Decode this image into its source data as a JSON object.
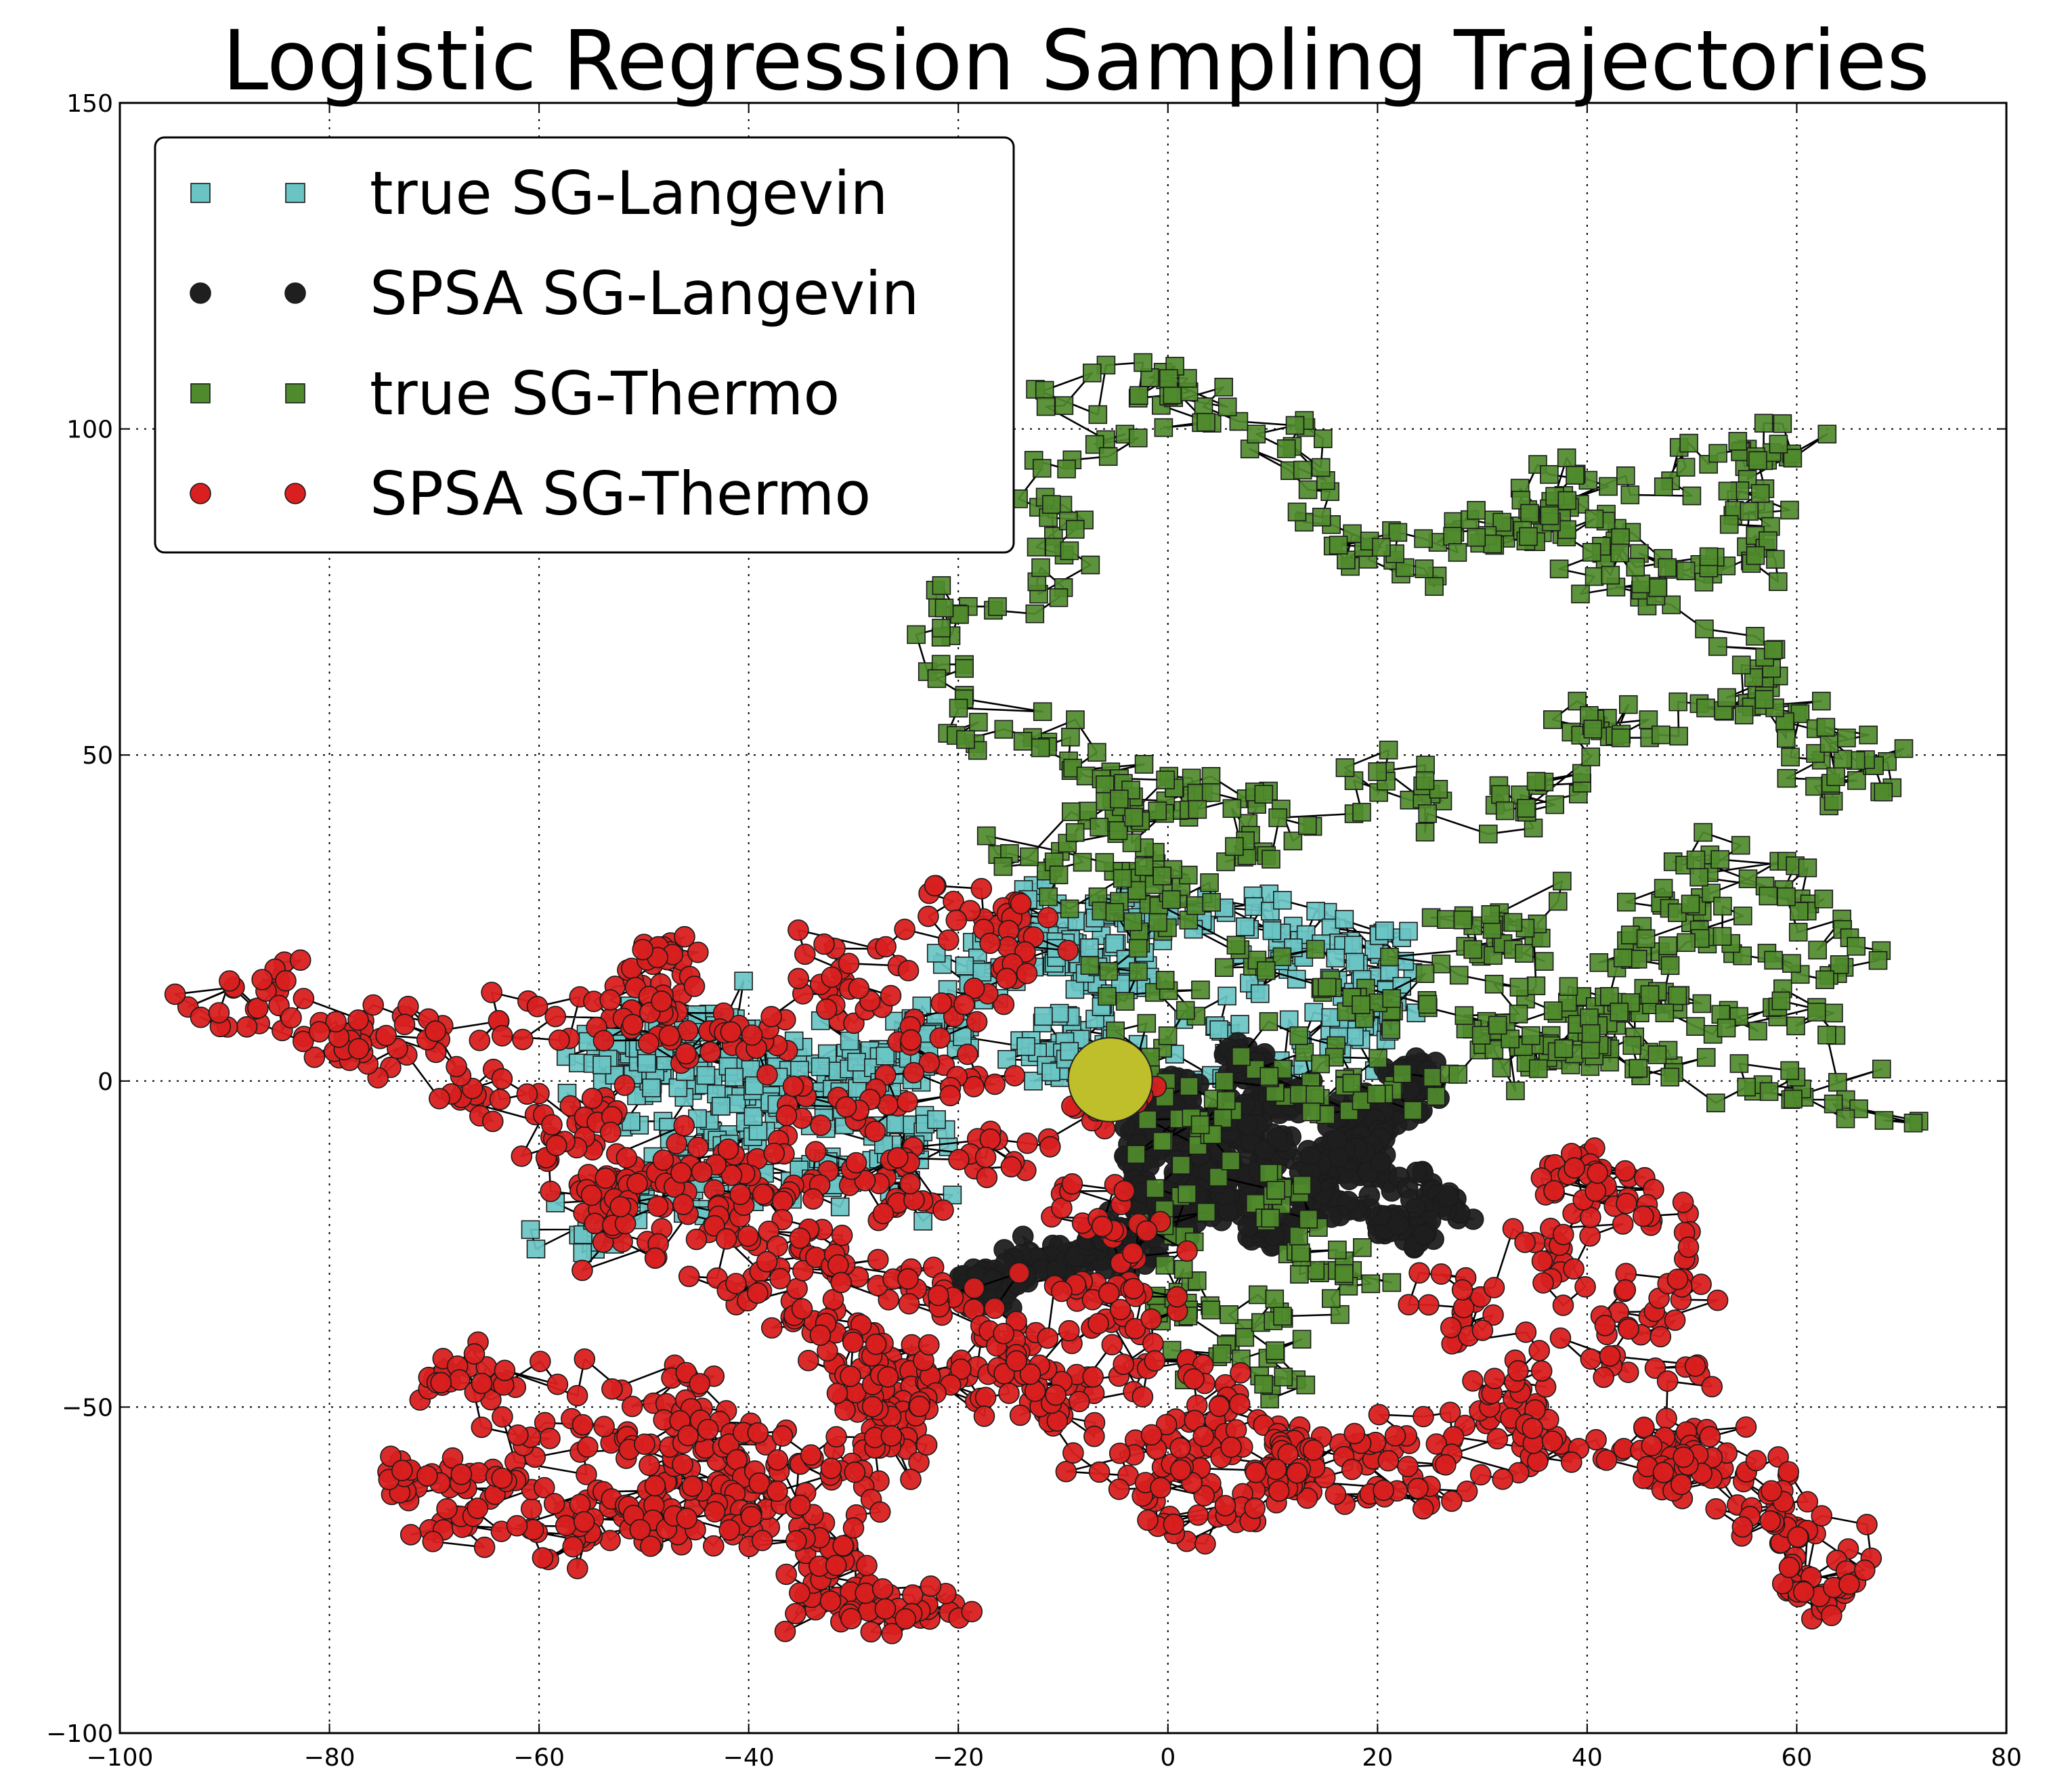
{
  "chart_data": {
    "type": "scatter",
    "title": "Logistic Regression Sampling Trajectories",
    "xlabel": "",
    "ylabel": "",
    "xlim": [
      -100,
      80
    ],
    "ylim": [
      -100,
      150
    ],
    "x_ticks": [
      -100,
      -80,
      -60,
      -40,
      -20,
      0,
      20,
      40,
      60,
      80
    ],
    "y_ticks": [
      -100,
      -50,
      0,
      50,
      100,
      150
    ],
    "x_tick_labels": [
      "−100",
      "−80",
      "−60",
      "−40",
      "−20",
      "0",
      "20",
      "40",
      "60",
      "80"
    ],
    "y_tick_labels": [
      "−100",
      "−50",
      "0",
      "50",
      "100",
      "150"
    ],
    "grid": true,
    "legend_position": "top-left",
    "start_point": {
      "name": "start",
      "x": -5.5,
      "y": 0.2,
      "color": "#bfbf2b"
    },
    "series": [
      {
        "name": "true SG-Langevin",
        "marker": "square",
        "color": "#6ac4c4",
        "anchors": [
          [
            -4,
            2
          ],
          [
            -10,
            12
          ],
          [
            -15,
            20
          ],
          [
            -8,
            22
          ],
          [
            2,
            24
          ],
          [
            12,
            20
          ],
          [
            15,
            26
          ],
          [
            20,
            18
          ],
          [
            22,
            12
          ],
          [
            18,
            8
          ],
          [
            10,
            6
          ],
          [
            5,
            10
          ],
          [
            -2,
            14
          ],
          [
            -8,
            16
          ],
          [
            -14,
            18
          ],
          [
            -20,
            12
          ],
          [
            -26,
            8
          ],
          [
            -30,
            4
          ],
          [
            -36,
            2
          ],
          [
            -44,
            6
          ],
          [
            -52,
            10
          ],
          [
            -56,
            4
          ],
          [
            -50,
            -2
          ],
          [
            -44,
            -6
          ],
          [
            -40,
            -10
          ],
          [
            -48,
            -14
          ],
          [
            -52,
            -20
          ],
          [
            -46,
            -18
          ],
          [
            -38,
            -16
          ],
          [
            -30,
            -14
          ],
          [
            -24,
            -10
          ],
          [
            -22,
            -4
          ],
          [
            -28,
            0
          ],
          [
            -34,
            -4
          ],
          [
            -40,
            -2
          ],
          [
            -46,
            2
          ],
          [
            -50,
            6
          ],
          [
            -54,
            8
          ],
          [
            -48,
            10
          ],
          [
            -42,
            4
          ],
          [
            -34,
            6
          ],
          [
            -26,
            4
          ],
          [
            -18,
            6
          ],
          [
            -12,
            8
          ],
          [
            -6,
            4
          ],
          [
            -3,
            1
          ]
        ],
        "count": 720
      },
      {
        "name": "SPSA SG-Langevin",
        "marker": "circle",
        "color": "#1f1f1f",
        "anchors": [
          [
            -3,
            -1
          ],
          [
            0,
            -6
          ],
          [
            4,
            -12
          ],
          [
            9,
            -16
          ],
          [
            14,
            -18
          ],
          [
            18,
            -12
          ],
          [
            21,
            -6
          ],
          [
            24,
            0
          ],
          [
            20,
            -4
          ],
          [
            16,
            -10
          ],
          [
            24,
            -14
          ],
          [
            26,
            -20
          ],
          [
            22,
            -24
          ],
          [
            18,
            -20
          ],
          [
            12,
            -24
          ],
          [
            8,
            -20
          ],
          [
            4,
            -16
          ],
          [
            0,
            -10
          ],
          [
            -2,
            -4
          ],
          [
            3,
            -2
          ],
          [
            7,
            4
          ],
          [
            10,
            0
          ],
          [
            8,
            -8
          ],
          [
            4,
            -6
          ],
          [
            0,
            -2
          ],
          [
            -4,
            -8
          ],
          [
            -2,
            -16
          ],
          [
            2,
            -22
          ],
          [
            -4,
            -26
          ],
          [
            -10,
            -28
          ],
          [
            -16,
            -30
          ],
          [
            -20,
            -33
          ],
          [
            -14,
            -32
          ],
          [
            -6,
            -26
          ],
          [
            0,
            -18
          ],
          [
            6,
            -10
          ],
          [
            12,
            -6
          ],
          [
            16,
            -2
          ],
          [
            20,
            -8
          ],
          [
            12,
            -14
          ],
          [
            6,
            -4
          ]
        ],
        "count": 900
      },
      {
        "name": "true SG-Thermo",
        "marker": "square",
        "color": "#4f8a2d",
        "anchors": [
          [
            -4,
            0
          ],
          [
            2,
            -8
          ],
          [
            6,
            -16
          ],
          [
            2,
            -26
          ],
          [
            -2,
            -36
          ],
          [
            4,
            -44
          ],
          [
            10,
            -48
          ],
          [
            14,
            -40
          ],
          [
            20,
            -34
          ],
          [
            16,
            -26
          ],
          [
            10,
            -18
          ],
          [
            4,
            -12
          ],
          [
            8,
            -4
          ],
          [
            14,
            2
          ],
          [
            18,
            -4
          ],
          [
            22,
            0
          ],
          [
            28,
            4
          ],
          [
            34,
            8
          ],
          [
            40,
            6
          ],
          [
            46,
            2
          ],
          [
            52,
            6
          ],
          [
            58,
            10
          ],
          [
            62,
            4
          ],
          [
            64,
            -4
          ],
          [
            56,
            0
          ],
          [
            48,
            8
          ],
          [
            42,
            14
          ],
          [
            46,
            22
          ],
          [
            52,
            28
          ],
          [
            56,
            34
          ],
          [
            60,
            26
          ],
          [
            66,
            22
          ],
          [
            58,
            18
          ],
          [
            52,
            22
          ],
          [
            46,
            18
          ],
          [
            40,
            12
          ],
          [
            36,
            6
          ],
          [
            30,
            10
          ],
          [
            34,
            16
          ],
          [
            38,
            22
          ],
          [
            32,
            20
          ],
          [
            28,
            12
          ],
          [
            22,
            14
          ],
          [
            16,
            12
          ],
          [
            10,
            18
          ],
          [
            4,
            24
          ],
          [
            -2,
            30
          ],
          [
            -8,
            32
          ],
          [
            -4,
            40
          ],
          [
            0,
            46
          ],
          [
            6,
            50
          ],
          [
            12,
            44
          ],
          [
            18,
            40
          ],
          [
            24,
            44
          ],
          [
            30,
            40
          ],
          [
            36,
            42
          ],
          [
            42,
            48
          ],
          [
            48,
            54
          ],
          [
            56,
            56
          ],
          [
            62,
            52
          ],
          [
            68,
            44
          ],
          [
            64,
            52
          ],
          [
            58,
            60
          ],
          [
            52,
            66
          ],
          [
            46,
            70
          ],
          [
            40,
            76
          ],
          [
            36,
            84
          ],
          [
            40,
            90
          ],
          [
            46,
            94
          ],
          [
            52,
            96
          ],
          [
            58,
            100
          ],
          [
            60,
            88
          ],
          [
            56,
            80
          ],
          [
            50,
            76
          ],
          [
            44,
            82
          ],
          [
            38,
            88
          ],
          [
            32,
            84
          ],
          [
            26,
            80
          ],
          [
            20,
            76
          ],
          [
            14,
            82
          ],
          [
            10,
            90
          ],
          [
            6,
            98
          ],
          [
            2,
            104
          ],
          [
            -4,
            108
          ],
          [
            -10,
            104
          ],
          [
            -14,
            96
          ],
          [
            -18,
            86
          ],
          [
            -20,
            76
          ],
          [
            -22,
            66
          ],
          [
            -18,
            58
          ],
          [
            -12,
            54
          ],
          [
            -8,
            48
          ],
          [
            -4,
            42
          ],
          [
            -8,
            36
          ],
          [
            -6,
            28
          ],
          [
            -2,
            20
          ],
          [
            0,
            12
          ],
          [
            -2,
            6
          ]
        ],
        "count": 1050
      },
      {
        "name": "SPSA SG-Thermo",
        "marker": "circle",
        "color": "#d91f1f",
        "anchors": [
          [
            -5,
            -2
          ],
          [
            -12,
            -6
          ],
          [
            -18,
            -10
          ],
          [
            -24,
            -14
          ],
          [
            -32,
            -18
          ],
          [
            -40,
            -20
          ],
          [
            -48,
            -22
          ],
          [
            -54,
            -18
          ],
          [
            -56,
            -10
          ],
          [
            -60,
            -4
          ],
          [
            -68,
            -4
          ],
          [
            -76,
            -2
          ],
          [
            -84,
            6
          ],
          [
            -90,
            14
          ],
          [
            -84,
            12
          ],
          [
            -76,
            10
          ],
          [
            -66,
            12
          ],
          [
            -58,
            18
          ],
          [
            -50,
            22
          ],
          [
            -46,
            14
          ],
          [
            -50,
            6
          ],
          [
            -44,
            0
          ],
          [
            -38,
            4
          ],
          [
            -32,
            10
          ],
          [
            -26,
            16
          ],
          [
            -22,
            22
          ],
          [
            -16,
            28
          ],
          [
            -12,
            22
          ],
          [
            -16,
            14
          ],
          [
            -20,
            6
          ],
          [
            -26,
            0
          ],
          [
            -32,
            -4
          ],
          [
            -38,
            -8
          ],
          [
            -44,
            -12
          ],
          [
            -50,
            -8
          ],
          [
            -54,
            -14
          ],
          [
            -48,
            -20
          ],
          [
            -40,
            -26
          ],
          [
            -34,
            -32
          ],
          [
            -28,
            -38
          ],
          [
            -22,
            -42
          ],
          [
            -16,
            -46
          ],
          [
            -10,
            -44
          ],
          [
            -4,
            -40
          ],
          [
            0,
            -46
          ],
          [
            4,
            -52
          ],
          [
            8,
            -56
          ],
          [
            12,
            -60
          ],
          [
            16,
            -66
          ],
          [
            22,
            -60
          ],
          [
            28,
            -54
          ],
          [
            32,
            -46
          ],
          [
            30,
            -38
          ],
          [
            34,
            -32
          ],
          [
            40,
            -28
          ],
          [
            44,
            -20
          ],
          [
            40,
            -14
          ],
          [
            46,
            -14
          ],
          [
            48,
            -22
          ],
          [
            44,
            -30
          ],
          [
            48,
            -38
          ],
          [
            46,
            -48
          ],
          [
            42,
            -54
          ],
          [
            48,
            -58
          ],
          [
            54,
            -62
          ],
          [
            58,
            -68
          ],
          [
            62,
            -74
          ],
          [
            64,
            -80
          ],
          [
            60,
            -72
          ],
          [
            56,
            -64
          ],
          [
            50,
            -58
          ],
          [
            44,
            -60
          ],
          [
            38,
            -56
          ],
          [
            32,
            -58
          ],
          [
            26,
            -54
          ],
          [
            20,
            -58
          ],
          [
            14,
            -62
          ],
          [
            10,
            -66
          ],
          [
            6,
            -70
          ],
          [
            2,
            -66
          ],
          [
            -2,
            -60
          ],
          [
            -6,
            -54
          ],
          [
            -10,
            -50
          ],
          [
            -14,
            -46
          ],
          [
            -20,
            -50
          ],
          [
            -24,
            -56
          ],
          [
            -28,
            -62
          ],
          [
            -32,
            -68
          ],
          [
            -36,
            -74
          ],
          [
            -30,
            -80
          ],
          [
            -24,
            -84
          ],
          [
            -20,
            -80
          ],
          [
            -26,
            -74
          ],
          [
            -32,
            -70
          ],
          [
            -38,
            -66
          ],
          [
            -44,
            -62
          ],
          [
            -50,
            -58
          ],
          [
            -56,
            -54
          ],
          [
            -62,
            -50
          ],
          [
            -66,
            -44
          ],
          [
            -60,
            -42
          ],
          [
            -54,
            -46
          ],
          [
            -48,
            -50
          ],
          [
            -42,
            -54
          ],
          [
            -46,
            -60
          ],
          [
            -52,
            -64
          ],
          [
            -58,
            -68
          ],
          [
            -64,
            -72
          ],
          [
            -70,
            -64
          ],
          [
            -74,
            -58
          ],
          [
            -66,
            -60
          ],
          [
            -58,
            -64
          ],
          [
            -50,
            -70
          ],
          [
            -42,
            -72
          ],
          [
            -36,
            -66
          ],
          [
            -30,
            -60
          ],
          [
            -26,
            -52
          ],
          [
            -30,
            -44
          ],
          [
            -36,
            -38
          ],
          [
            -42,
            -34
          ],
          [
            -36,
            -28
          ],
          [
            -28,
            -30
          ],
          [
            -20,
            -34
          ],
          [
            -12,
            -38
          ],
          [
            -6,
            -34
          ],
          [
            -2,
            -28
          ],
          [
            -4,
            -20
          ],
          [
            -8,
            -12
          ]
        ],
        "count": 1700
      }
    ]
  }
}
